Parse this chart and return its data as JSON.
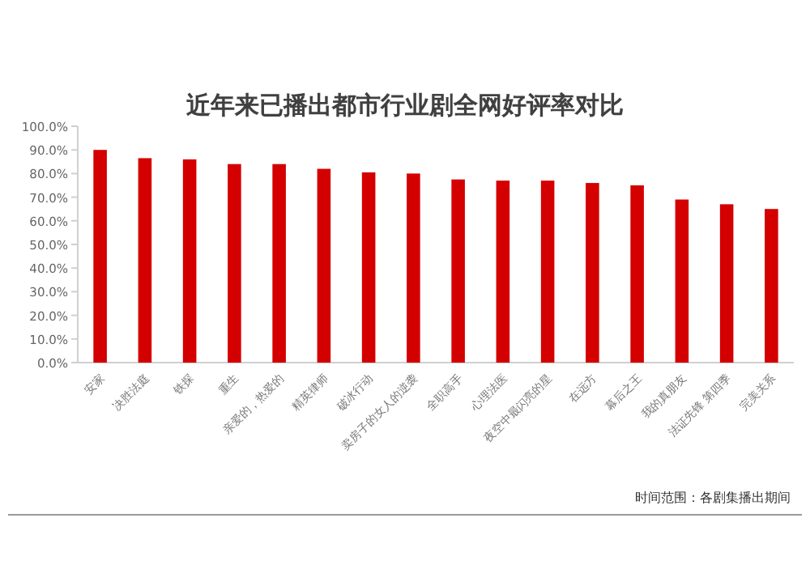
{
  "chart_data": {
    "type": "bar",
    "title": "近年来已播出都市行业剧全网好评率对比",
    "categories": [
      "安家",
      "决胜法庭",
      "铁探",
      "重生",
      "亲爱的，热爱的",
      "精英律师",
      "破冰行动",
      "卖房子的女人的逆袭",
      "全职高手",
      "心理法医",
      "夜空中最闪亮的星",
      "在远方",
      "幕后之王",
      "我的真朋友",
      "法证先锋 第四季",
      "完美关系"
    ],
    "values": [
      90,
      86.5,
      86,
      84,
      84,
      82,
      80.5,
      80,
      77.5,
      77,
      77,
      76,
      75,
      69,
      67,
      65
    ],
    "color": "#d40000",
    "ylim": [
      0,
      100
    ],
    "yticks": [
      {
        "value": 0,
        "label": "0.0%"
      },
      {
        "value": 10,
        "label": "10.0%"
      },
      {
        "value": 20,
        "label": "20.0%"
      },
      {
        "value": 30,
        "label": "30.0%"
      },
      {
        "value": 40,
        "label": "40.0%"
      },
      {
        "value": 50,
        "label": "50.0%"
      },
      {
        "value": 60,
        "label": "60.0%"
      },
      {
        "value": 70,
        "label": "70.0%"
      },
      {
        "value": 80,
        "label": "80.0%"
      },
      {
        "value": 90,
        "label": "90.0%"
      },
      {
        "value": 100,
        "label": "100.0%"
      }
    ],
    "grid": false,
    "annotations": [
      "时间范围：各剧集播出期间"
    ]
  }
}
